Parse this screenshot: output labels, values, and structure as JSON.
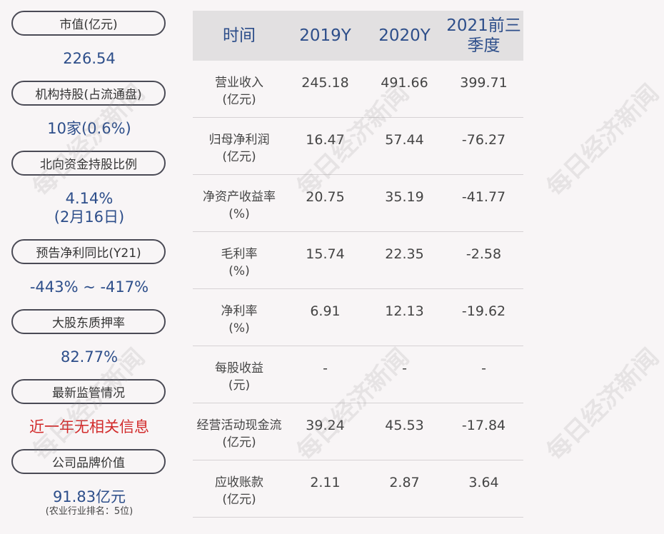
{
  "left": {
    "items": [
      {
        "label": "市值(亿元)",
        "value": "226.54"
      },
      {
        "label": "机构持股(占流通盘)",
        "value": "10家(0.6%)"
      },
      {
        "label": "北向资金持股比例",
        "value": "4.14%",
        "value2": "(2月16日)"
      },
      {
        "label": "预告净利同比(Y21)",
        "value": "-443% ~ -417%"
      },
      {
        "label": "大股东质押率",
        "value": "82.77%"
      },
      {
        "label": "最新监管情况",
        "value": "近一年无相关信息"
      },
      {
        "label": "公司品牌价值",
        "value": "91.83亿元",
        "note": "(农业行业排名：5位)"
      }
    ]
  },
  "table": {
    "headers": [
      "时间",
      "2019Y",
      "2020Y",
      "2021前三季度"
    ],
    "rows": [
      {
        "label1": "营业收入",
        "label2": "(亿元)",
        "v": [
          "245.18",
          "491.66",
          "399.71"
        ]
      },
      {
        "label1": "归母净利润",
        "label2": "(亿元)",
        "v": [
          "16.47",
          "57.44",
          "-76.27"
        ]
      },
      {
        "label1": "净资产收益率",
        "label2": "(%)",
        "v": [
          "20.75",
          "35.19",
          "-41.77"
        ]
      },
      {
        "label1": "毛利率",
        "label2": "(%)",
        "v": [
          "15.74",
          "22.35",
          "-2.58"
        ]
      },
      {
        "label1": "净利率",
        "label2": "(%)",
        "v": [
          "6.91",
          "12.13",
          "-19.62"
        ]
      },
      {
        "label1": "每股收益",
        "label2": "(元)",
        "v": [
          "-",
          "-",
          "-"
        ]
      },
      {
        "label1": "经营活动现金流",
        "label2": "(亿元)",
        "v": [
          "39.24",
          "45.53",
          "-17.84"
        ]
      },
      {
        "label1": "应收账款",
        "label2": "(亿元)",
        "v": [
          "2.11",
          "2.87",
          "3.64"
        ]
      }
    ]
  },
  "watermark": "每日经济新闻",
  "colors": {
    "accent": "#2d4e8a",
    "alert": "#d22b2b",
    "header_bg": "#e2e0e1"
  }
}
